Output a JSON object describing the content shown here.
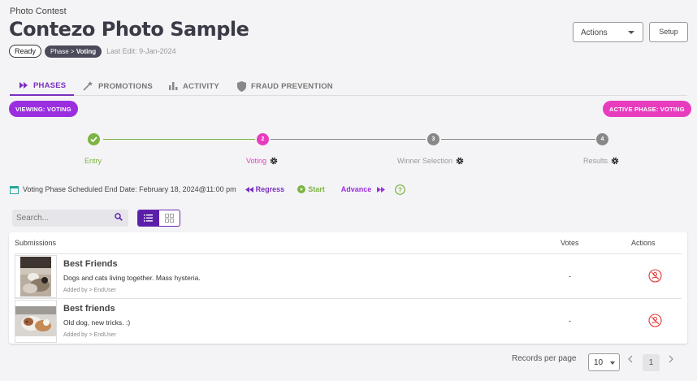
{
  "header": {
    "contest_label": "Photo Contest",
    "title": "Contezo Photo Sample",
    "status_badge": "Ready",
    "phase_prefix": "Phase",
    "phase_value": "Voting",
    "last_edit": "Last Edit: 9-Jan-2024",
    "actions_label": "Actions",
    "setup_label": "Setup"
  },
  "tabs": [
    {
      "label": "PHASES",
      "icon": "fast-forward-icon",
      "active": true
    },
    {
      "label": "PROMOTIONS",
      "icon": "magic-wand-icon",
      "active": false
    },
    {
      "label": "ACTIVITY",
      "icon": "bar-chart-icon",
      "active": false
    },
    {
      "label": "FRAUD PREVENTION",
      "icon": "shield-icon",
      "active": false
    }
  ],
  "pills": {
    "viewing": "VIEWING: VOTING",
    "active_phase": "ACTIVE PHASE: VOTING"
  },
  "steps": [
    {
      "label": "Entry",
      "number": "",
      "state": "complete",
      "color": "#7cb342"
    },
    {
      "label": "Voting",
      "number": "2",
      "state": "current",
      "color": "#e83cbf"
    },
    {
      "label": "Winner Selection",
      "number": "3",
      "state": "pending",
      "color": "#888888"
    },
    {
      "label": "Results",
      "number": "4",
      "state": "pending",
      "color": "#888888"
    }
  ],
  "schedule": {
    "text": "Voting Phase Scheduled End Date: February 18, 2024@11:00 pm",
    "regress_label": "Regress",
    "start_label": "Start",
    "advance_label": "Advance"
  },
  "search": {
    "placeholder": "Search..."
  },
  "table": {
    "col_submissions": "Submissions",
    "col_votes": "Votes",
    "col_actions": "Actions",
    "rows": [
      {
        "title": "Best Friends",
        "description": "Dogs and cats living together. Mass hysteria.",
        "added_by": "Added by > EndUser",
        "votes": "-"
      },
      {
        "title": "Best friends",
        "description": "Old dog, new tricks. :)",
        "added_by": "Added by > EndUser",
        "votes": "-"
      }
    ]
  },
  "pagination": {
    "records_per_page_label": "Records per page",
    "records_per_page_value": "10",
    "current_page": "1"
  },
  "colors": {
    "accent": "#7b2fbf",
    "pink": "#e83cbf",
    "green": "#7cb342",
    "danger": "#e53935"
  }
}
